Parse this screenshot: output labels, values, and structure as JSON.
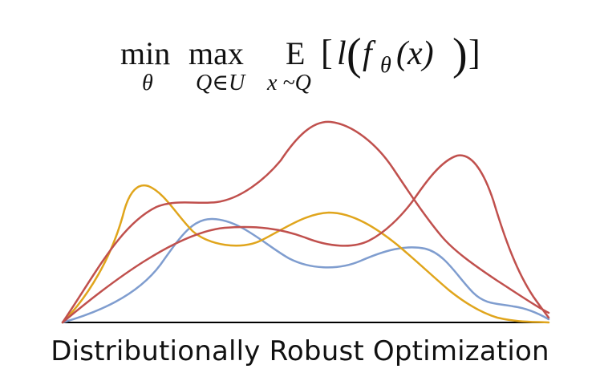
{
  "formula": {
    "op_min": "min",
    "sub_min": "θ",
    "op_max": "max",
    "sub_max": "Q∈U",
    "op_exp": "E",
    "sub_exp": "x ~Q",
    "bracket_open": "[",
    "loss": "l",
    "paren_open": "(",
    "model": "f",
    "model_sub": "θ",
    "arg": "(x)",
    "paren_close": ")",
    "bracket_close": "]"
  },
  "caption": "Distributionally Robust Optimization",
  "colors": {
    "red": "#c0504d",
    "gold": "#e0a51c",
    "blue": "#7f9dcf",
    "axis": "#000000",
    "text": "#111111"
  }
}
